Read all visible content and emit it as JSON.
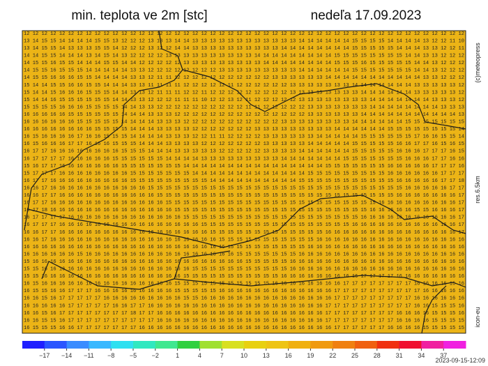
{
  "header": {
    "title": "min. teplota ve 2m [stc]",
    "date": "nedeľa 17.09.2023"
  },
  "side_labels": {
    "copyright": "(c)meteopress",
    "resolution": "res.6.5km",
    "model": "icon-eu"
  },
  "timestamp": "2023-09-15-12:09",
  "grid": {
    "rows": [
      "12 12 12 12 12 12 12 12 12 12 12 12 12 12 12 12 12 12 12 12 12 12 12 12 12 12 12 12 12 12 12 12 12 12 12 12 12 12 12 12 12 12 12 12 12 12 12 12 12 12",
      "13 14 15 15 14 14 14 14 15 15 13 12 12 12 13 13 13 14 14 13 13 13 13 13 13 13 13 13 13 13 13 14 14 14 14 14 14 15 15 15 15 14 14 14 14 13 12 12 11 10",
      "13 14 15 15 14 13 13 13 15 15 14 12 12 12 13 12 12 14 14 13 13 13 13 13 13 13 13 13 13 14 14 14 14 14 14 14 14 15 15 15 15 15 14 14 14 13 13 12 12 11",
      "14 14 15 15 14 14 14 13 14 15 14 13 12 12 12 12 13 13 13 13 13 13 13 13 13 13 14 14 14 14 14 14 14 14 14 15 15 15 15 15 15 15 15 14 14 13 13 12 12 12",
      "14 15 15 16 15 15 14 14 14 15 15 14 14 12 12 12 12 12 13 13 13 13 13 13 13 13 13 14 14 14 14 14 14 14 14 15 15 15 16 15 15 15 15 15 14 14 13 12 12 12",
      "14 15 15 16 15 15 15 14 14 14 14 14 13 13 12 12 12 12 12 12 12 12 13 13 13 13 13 13 13 13 13 14 14 14 14 14 14 15 15 15 15 15 15 15 14 14 13 12 12 12",
      "14 15 15 16 16 16 15 15 14 14 14 14 13 13 12 11 11 12 12 12 12 12 12 12 12 12 12 12 13 13 13 13 13 13 14 14 14 14 14 14 14 14 14 14 14 13 13 12 12 12",
      "15 14 14 15 15 16 16 15 15 14 14 14 13 13 11 11 11 11 12 12 12 12 12 11 12 12 12 12 12 12 13 13 13 13 13 13 13 14 14 14 14 14 14 14 13 13 13 13 13 12",
      "15 14 14 15 16 16 16 15 15 15 14 14 13 13 12 11 11 11 12 12 11 12 12 12 12 12 12 12 12 12 13 13 13 13 13 13 13 13 14 14 14 14 14 14 13 13 13 13 13 12",
      "15 14 14 16 15 15 15 15 15 15 14 14 13 13 12 12 12 11 11 11 10 12 12 13 12 11 12 12 12 12 12 13 13 13 13 13 13 13 13 14 14 14 14 14 14 14 13 13 13 12",
      "15 15 15 15 16 16 16 15 15 15 15 14 14 13 13 12 12 12 12 12 12 12 12 12 12 11 11 12 12 12 12 12 13 13 13 13 13 13 13 14 14 14 14 14 14 14 14 13 13 13",
      "16 16 16 16 16 15 15 15 15 15 15 14 14 14 13 13 13 12 12 12 12 12 12 12 12 12 12 12 12 12 12 12 13 13 13 13 13 13 14 14 14 14 14 14 14 14 14 14 14 13",
      "16 16 16 16 16 16 15 15 15 15 15 14 14 14 14 13 13 13 12 12 12 12 12 12 12 12 12 12 12 13 13 13 13 13 13 13 13 14 14 14 14 14 14 15 15 15 15 15 15 15",
      "16 16 16 16 16 16 16 16 15 15 15 15 14 14 14 13 13 13 13 12 12 12 12 12 12 12 13 13 13 13 13 13 13 13 13 14 14 14 14 14 14 15 15 15 15 15 15 15 15 14",
      "16 15 16 16 16 16 17 16 16 15 15 15 14 14 14 14 13 13 13 12 12 11 11 12 12 12 12 13 13 13 13 13 13 14 14 14 14 14 15 15 15 15 15 15 17 16 16 15 15 14",
      "16 15 16 16 16 17 17 16 16 16 15 15 15 14 14 14 13 13 13 13 12 12 12 12 12 12 12 13 13 13 13 13 14 14 14 14 14 15 15 15 15 15 16 16 17 17 16 15 16 15",
      "16 17 17 16 16 16 16 16 16 16 16 15 15 15 14 14 14 13 13 13 13 13 12 12 12 12 12 13 13 13 13 14 14 14 14 14 14 15 15 15 15 15 16 16 16 17 17 17 16 15",
      "16 17 17 17 17 16 16 16 16 16 15 15 15 15 15 15 14 14 14 14 13 13 13 13 13 13 13 13 13 14 14 14 14 14 14 14 15 15 15 15 15 15 15 16 16 16 17 17 16 16",
      "15 16 17 17 16 16 16 16 16 16 16 15 15 15 15 15 15 15 14 14 14 14 14 14 14 14 14 14 14 14 14 14 14 14 15 15 15 15 15 15 15 16 16 16 16 16 17 17 17 16",
      "15 17 17 17 16 16 16 16 16 16 16 16 15 15 15 15 15 15 15 14 14 14 14 14 14 14 14 14 14 14 14 14 15 15 15 15 15 15 15 15 15 16 16 16 16 16 16 17 17 17",
      "16 17 17 16 16 16 16 16 16 16 16 16 15 15 15 15 15 15 15 15 15 14 14 14 14 14 14 14 14 14 14 15 15 15 15 15 15 15 15 15 15 15 16 16 16 16 16 17 17 18",
      "16 16 17 16 16 16 16 16 16 16 16 16 16 16 15 15 15 15 15 15 15 15 15 15 15 15 15 15 15 15 15 15 15 15 15 15 15 15 15 15 15 15 15 16 16 16 16 16 17 17",
      "16 16 17 17 16 16 16 16 16 16 16 16 16 16 16 15 15 15 15 15 15 15 15 15 15 15 15 15 15 15 15 15 15 15 15 15 15 15 15 15 15 15 16 16 16 16 16 16 16 17",
      "16 17 17 16 16 16 16 16 16 16 16 16 16 16 16 16 15 15 15 15 15 15 15 15 15 15 15 15 15 15 15 15 15 15 15 15 15 15 15 15 16 16 16 16 16 16 16 16 16 17",
      "16 17 18 16 16 16 16 16 16 16 16 16 16 16 16 16 16 15 15 15 15 15 15 15 15 15 15 15 15 15 15 15 15 15 15 15 15 15 15 16 16 16 16 16 15 15 16 16 16 17",
      "16 17 17 17 17 16 16 16 16 16 16 16 16 16 16 16 16 16 15 15 15 15 15 15 15 15 15 15 15 15 15 15 15 15 15 15 15 15 16 16 16 16 16 16 16 16 16 16 16 17",
      "16 17 17 17 16 16 16 16 16 16 16 16 16 16 16 16 16 16 16 16 15 15 15 15 15 15 15 15 15 15 15 15 15 15 15 15 15 16 16 16 16 16 16 16 16 16 16 16 16 17",
      "16 16 17 17 16 16 16 16 16 16 16 16 16 16 16 16 16 16 16 16 16 15 15 15 15 15 15 15 15 15 15 15 15 15 16 16 16 16 16 16 16 16 16 16 16 16 16 16 16 17",
      "16 16 17 16 16 16 16 16 16 16 16 16 16 16 16 16 16 16 16 16 16 16 15 15 15 15 15 15 15 15 15 15 15 16 16 16 16 16 16 16 16 16 16 16 16 16 16 16 16 16",
      "16 16 16 16 16 16 16 16 16 16 16 16 16 16 16 16 16 16 16 16 16 16 16 15 15 15 15 15 15 15 15 15 16 16 16 16 16 16 16 16 16 16 16 16 16 16 16 16 16 16",
      "16 16 16 16 16 16 15 16 16 16 16 16 16 16 16 16 16 16 16 16 16 16 16 16 15 15 15 15 15 15 15 16 16 16 16 16 16 16 16 16 16 16 16 16 16 16 16 16 16 16",
      "15 16 16 16 16 16 16 16 16 16 16 16 16 16 16 16 16 16 16 16 16 16 16 16 16 15 15 15 15 15 16 16 16 16 16 16 16 16 16 16 16 16 16 16 16 16 16 16 16 16",
      "15 15 16 16 16 16 16 16 16 16 16 16 16 16 16 16 16 16 16 15 15 15 15 15 15 15 15 15 15 15 16 16 16 16 16 16 16 16 16 16 16 16 16 16 16 16 16 16 16 16",
      "15 15 16 16 16 16 16 16 16 16 16 16 16 16 16 16 16 16 15 15 15 15 15 15 15 15 15 15 15 16 16 16 16 16 16 16 16 16 17 17 17 17 16 16 16 16 16 16 16 16",
      "16 15 16 16 16 16 16 16 16 16 16 16 16 16 16 16 16 15 15 15 15 15 15 15 15 15 15 15 16 16 16 16 16 16 16 16 17 17 17 17 17 17 17 17 16 16 16 16 16 16",
      "16 15 15 16 16 17 17 17 16 16 16 16 16 16 16 16 16 15 15 15 15 15 16 16 16 16 16 16 16 16 16 16 16 16 16 17 17 17 17 17 17 17 17 17 17 16 16 16 16 16",
      "16 16 15 16 17 17 17 17 17 16 16 16 16 16 16 16 16 16 15 15 16 16 16 16 16 16 16 16 16 16 16 16 16 16 16 17 17 17 17 17 17 17 17 17 16 16 16 16 16 16",
      "16 16 16 16 16 17 17 17 17 17 16 16 17 17 16 16 16 16 16 16 16 16 16 16 16 16 16 16 16 16 16 16 16 16 17 17 17 17 17 17 17 17 17 17 16 16 15 15 15 16",
      "16 16 15 16 17 17 17 17 17 17 17 17 18 17 17 16 16 16 16 16 16 16 16 16 16 16 16 16 16 16 16 16 16 16 17 17 17 17 17 17 17 17 16 16 16 16 15 15 15 16",
      "16 16 15 15 16 17 17 17 17 17 17 17 17 17 17 16 16 16 16 16 16 16 16 16 16 16 16 16 16 16 16 16 16 16 17 17 17 17 17 17 17 17 16 16 16 16 15 15 15 15",
      "16 15 15 15 16 16 17 17 17 17 17 17 17 16 16 16 16 16 16 16 16 16 16 16 16 16 16 16 16 16 16 16 16 16 16 17 17 17 17 17 17 16 16 16 16 15 15 15 15 15"
    ]
  },
  "colorbar": {
    "lim": [
      -20,
      40
    ],
    "colors": [
      "#1f1fff",
      "#2a55ff",
      "#3a8cff",
      "#38b8ff",
      "#2ee0f0",
      "#30e8c0",
      "#40e890",
      "#30d040",
      "#a0e030",
      "#d8e020",
      "#e8d010",
      "#eec414",
      "#f0b010",
      "#f09a10",
      "#f08010",
      "#f06010",
      "#f03010",
      "#f01030",
      "#f020a0",
      "#f020e0"
    ],
    "ticks": [
      {
        "value": -17,
        "label": "−17"
      },
      {
        "value": -14,
        "label": "−14"
      },
      {
        "value": -11,
        "label": "−11"
      },
      {
        "value": -8,
        "label": "−8"
      },
      {
        "value": -5,
        "label": "−5"
      },
      {
        "value": -2,
        "label": "−2"
      },
      1,
      4,
      7,
      10,
      13,
      16,
      19,
      22,
      25,
      28,
      31,
      34,
      37
    ]
  }
}
